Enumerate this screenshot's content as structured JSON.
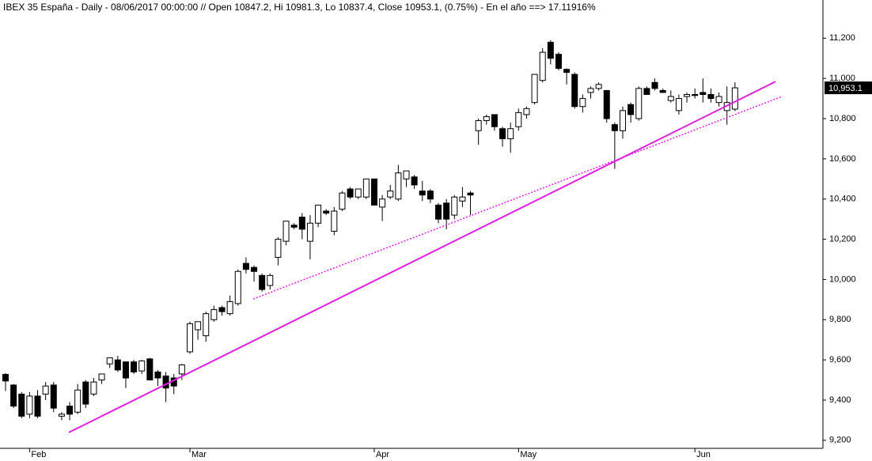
{
  "chart_data": {
    "type": "candlestick",
    "title": "IBEX 35 España - Daily - 08/06/2017 00:00:00 // Open 10847.2, Hi 10981.3, Lo 10837.4, Close 10953.1, (0.75%) - En el año ==> 17.11916%",
    "categories": [
      null,
      null,
      null,
      "Feb",
      null,
      null,
      null,
      null,
      null,
      null,
      null,
      null,
      null,
      null,
      null,
      null,
      null,
      null,
      null,
      null,
      null,
      null,
      null,
      "Mar",
      null,
      null,
      null,
      null,
      null,
      null,
      null,
      null,
      null,
      null,
      null,
      null,
      null,
      null,
      null,
      null,
      null,
      null,
      null,
      null,
      null,
      null,
      "Apr",
      null,
      null,
      null,
      null,
      null,
      null,
      null,
      null,
      null,
      null,
      null,
      null,
      null,
      null,
      null,
      null,
      null,
      "May",
      null,
      null,
      null,
      null,
      null,
      null,
      null,
      null,
      null,
      null,
      null,
      null,
      null,
      null,
      null,
      null,
      null,
      null,
      null,
      null,
      null,
      "Jun",
      null,
      null,
      null,
      null,
      null
    ],
    "series": {
      "open": [
        9528,
        9475,
        9430,
        9330,
        9420,
        9430,
        9475,
        9320,
        9370,
        9340,
        9490,
        9430,
        9500,
        9580,
        9600,
        9590,
        9590,
        9545,
        9605,
        9540,
        9520,
        9510,
        9530,
        9640,
        9750,
        9720,
        9800,
        9860,
        9830,
        9880,
        10080,
        10060,
        10020,
        9970,
        10110,
        10190,
        10270,
        10310,
        10190,
        10280,
        10340,
        10240,
        10350,
        10450,
        10410,
        10410,
        10500,
        10360,
        10410,
        10400,
        10500,
        10510,
        10440,
        10440,
        10370,
        10380,
        10320,
        10390,
        10430,
        10740,
        10790,
        10820,
        10750,
        10700,
        10760,
        10820,
        10880,
        10990,
        11180,
        11120,
        11045,
        11020,
        10860,
        10930,
        10950,
        10940,
        10770,
        10740,
        10870,
        10800,
        10950,
        10980,
        10940,
        10890,
        10840,
        10910,
        10920,
        10930,
        10920,
        10880,
        10840,
        10847.2
      ],
      "high": [
        9535,
        9480,
        9440,
        9440,
        9450,
        9490,
        9490,
        9340,
        9390,
        9480,
        9500,
        9510,
        9530,
        9610,
        9620,
        9590,
        9600,
        9600,
        9610,
        9550,
        9540,
        9530,
        9580,
        9790,
        9790,
        9840,
        9870,
        9870,
        9920,
        10050,
        10110,
        10070,
        10030,
        10030,
        10210,
        10290,
        10280,
        10330,
        10320,
        10370,
        10350,
        10360,
        10440,
        10460,
        10450,
        10500,
        10500,
        10420,
        10470,
        10570,
        10540,
        10520,
        10490,
        10450,
        10380,
        10400,
        10420,
        10460,
        10440,
        10800,
        10820,
        10820,
        10760,
        10780,
        10850,
        10860,
        11020,
        11150,
        11190,
        11130,
        11050,
        11030,
        10920,
        10960,
        10980,
        10940,
        10780,
        10860,
        10880,
        10960,
        10960,
        11000,
        10950,
        10940,
        10920,
        10930,
        10950,
        11000,
        10950,
        10930,
        10960,
        10981.3
      ],
      "low": [
        9445,
        9360,
        9310,
        9310,
        9310,
        9400,
        9340,
        9300,
        9300,
        9330,
        9360,
        9420,
        9480,
        9560,
        9540,
        9460,
        9530,
        9530,
        9500,
        9470,
        9390,
        9430,
        9500,
        9630,
        9700,
        9690,
        9790,
        9820,
        9820,
        9870,
        10030,
        9990,
        9940,
        9950,
        10070,
        10170,
        10250,
        10200,
        10100,
        10260,
        10320,
        10220,
        10340,
        10400,
        10400,
        10400,
        10370,
        10290,
        10400,
        10390,
        10460,
        10450,
        10390,
        10380,
        10280,
        10250,
        10300,
        10360,
        10320,
        10670,
        10770,
        10740,
        10660,
        10630,
        10740,
        10800,
        10870,
        10980,
        11070,
        11040,
        10970,
        10850,
        10830,
        10900,
        10940,
        10780,
        10550,
        10700,
        10780,
        10790,
        10920,
        10940,
        10930,
        10880,
        10820,
        10880,
        10900,
        10880,
        10880,
        10860,
        10770,
        10837.4
      ],
      "close": [
        9495,
        9370,
        9320,
        9420,
        9320,
        9470,
        9360,
        9330,
        9330,
        9450,
        9380,
        9490,
        9530,
        9610,
        9550,
        9510,
        9540,
        9595,
        9500,
        9510,
        9460,
        9470,
        9575,
        9780,
        9790,
        9830,
        9850,
        9840,
        9890,
        10040,
        10050,
        10040,
        9950,
        10020,
        10200,
        10290,
        10260,
        10250,
        10280,
        10370,
        10330,
        10340,
        10430,
        10410,
        10450,
        10500,
        10370,
        10400,
        10440,
        10530,
        10540,
        10470,
        10420,
        10400,
        10300,
        10300,
        10410,
        10410,
        10420,
        10790,
        10810,
        10760,
        10700,
        10750,
        10830,
        10850,
        11020,
        11130,
        11100,
        11050,
        11030,
        10860,
        10900,
        10950,
        10970,
        10800,
        10740,
        10840,
        10820,
        10950,
        10920,
        10950,
        10930,
        10910,
        10900,
        10920,
        10915,
        10920,
        10900,
        10910,
        10880,
        10953.1
      ]
    },
    "last_close_label": "10,953.1",
    "up_color": "#ffffff",
    "down_color": "#000000",
    "trendlines": [
      {
        "style": "solid",
        "color": "#e020e0",
        "x_index": [
          7.9,
          96.05
        ],
        "values": [
          9239,
          10984
        ]
      },
      {
        "style": "dotted",
        "color": "#e020e0",
        "x_index": [
          30.9,
          96.8
        ],
        "values": [
          9903,
          10909
        ]
      }
    ],
    "ylim": [
      9160,
      11390
    ],
    "yticks": [
      {
        "value": 9200,
        "label": "9,200"
      },
      {
        "value": 9400,
        "label": "9,400"
      },
      {
        "value": 9600,
        "label": "9,600"
      },
      {
        "value": 9800,
        "label": "9,800"
      },
      {
        "value": 10000,
        "label": "10,000"
      },
      {
        "value": 10200,
        "label": "10,200"
      },
      {
        "value": 10400,
        "label": "10,400"
      },
      {
        "value": 10600,
        "label": "10,600"
      },
      {
        "value": 10800,
        "label": "10,800"
      },
      {
        "value": 11000,
        "label": "11,000"
      },
      {
        "value": 11200,
        "label": "11,200"
      }
    ]
  }
}
